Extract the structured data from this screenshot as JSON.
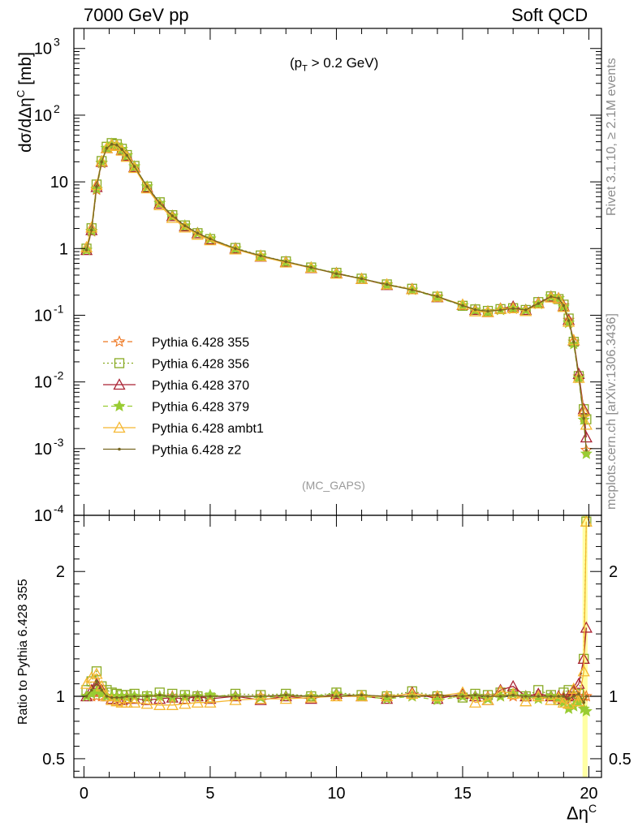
{
  "header": {
    "left": "7000 GeV pp",
    "right": "Soft QCD"
  },
  "annotation": {
    "cut_prefix": "(p",
    "cut_sub": "T",
    "cut_suffix": " > 0.2 GeV)",
    "tag": "(MC_GAPS)"
  },
  "side_labels": {
    "rivet": "Rivet 3.1.10, ≥ 2.1M events",
    "source": "mcplots.cern.ch [arXiv:1306.3436]"
  },
  "axis_text": {
    "y_top_main": "dσ/dΔη",
    "y_top_sup": "C",
    "y_top_unit": " [mb]",
    "y_bottom": "Ratio to Pythia 6.428 355",
    "x_main": "Δη",
    "x_sup": "C"
  },
  "colors": {
    "s355": "#ee7722",
    "s356": "#88aa22",
    "s370": "#aa2233",
    "s379": "#99cc33",
    "ambt1": "#f5b730",
    "z2": "#776622"
  },
  "chart_data": [
    {
      "type": "line",
      "panel": "main",
      "xlim": [
        -0.4,
        20.5
      ],
      "ylim": [
        0.0001,
        2000
      ],
      "y_scale": "log",
      "x_ticks": [
        0,
        5,
        10,
        15,
        20
      ],
      "y_tick_labels": [
        "10^3",
        "10^2",
        "10",
        "1",
        "10^-1",
        "10^-2",
        "10^-3",
        "10^-4"
      ],
      "legend_position": "left-middle",
      "x": [
        0.1,
        0.3,
        0.5,
        0.7,
        0.9,
        1.1,
        1.3,
        1.5,
        1.7,
        2.0,
        2.5,
        3.0,
        3.5,
        4.0,
        4.5,
        5.0,
        6.0,
        7.0,
        8.0,
        9.0,
        10.0,
        11.0,
        12.0,
        13.0,
        14.0,
        15.0,
        15.5,
        16.0,
        16.5,
        17.0,
        17.5,
        18.0,
        18.5,
        18.8,
        19.0,
        19.2,
        19.4,
        19.6,
        19.8,
        19.9
      ],
      "reference": [
        0.95,
        1.8,
        7.6,
        19,
        32,
        37,
        36,
        31,
        25,
        17,
        8.5,
        4.8,
        3.1,
        2.2,
        1.7,
        1.4,
        1.0,
        0.78,
        0.63,
        0.52,
        0.42,
        0.35,
        0.29,
        0.24,
        0.19,
        0.14,
        0.12,
        0.115,
        0.12,
        0.125,
        0.12,
        0.15,
        0.19,
        0.18,
        0.14,
        0.085,
        0.04,
        0.012,
        0.003,
        0.00095
      ],
      "series": [
        {
          "name": "Pythia 6.428 355",
          "color_key": "s355",
          "marker": "star-open",
          "dash": "6,4",
          "scale": [
            1,
            1,
            1,
            1,
            1,
            1,
            1,
            1,
            1,
            1,
            1,
            1,
            1,
            1,
            1,
            1,
            1,
            1,
            1,
            1,
            1,
            1,
            1,
            1,
            1,
            1,
            1,
            1,
            1,
            1,
            1,
            1,
            1,
            1,
            1,
            1,
            1,
            1,
            1,
            1
          ]
        },
        {
          "name": "Pythia 6.428 356",
          "color_key": "s356",
          "marker": "square-open",
          "dash": "2,3",
          "scale": [
            1.05,
            1.12,
            1.2,
            1.08,
            1.05,
            1.03,
            1.02,
            1.01,
            1.01,
            1.02,
            1.0,
            1.03,
            1.02,
            1.01,
            1.0,
            0.99,
            1.02,
            1.01,
            1.02,
            1.0,
            1.03,
            1.01,
            1.0,
            1.04,
            1.0,
            0.99,
            1.02,
            1.01,
            1.03,
            1.02,
            1.0,
            1.05,
            1.01,
            0.97,
            1.03,
            1.05,
            1.0,
            1.02,
            1.3,
            2.9
          ]
        },
        {
          "name": "Pythia 6.428 370",
          "color_key": "s370",
          "marker": "triangle-open",
          "dash": "",
          "scale": [
            1.0,
            1.05,
            1.1,
            1.05,
            1.0,
            0.98,
            0.97,
            0.97,
            0.98,
            0.98,
            0.97,
            0.98,
            0.99,
            0.98,
            1.0,
            0.98,
            1.0,
            0.97,
            1.0,
            0.98,
            1.02,
            1.0,
            0.98,
            1.03,
            0.98,
            1.02,
            1.0,
            0.97,
            1.05,
            1.08,
            1.0,
            1.02,
            1.0,
            1.0,
            0.98,
            1.0,
            1.05,
            1.1,
            1.3,
            1.55
          ]
        },
        {
          "name": "Pythia 6.428 379",
          "color_key": "s379",
          "marker": "star-filled",
          "dash": "6,4",
          "scale": [
            1.0,
            1.02,
            1.04,
            1.02,
            1.0,
            1.0,
            0.99,
            1.0,
            0.99,
            1.0,
            1.0,
            1.0,
            0.99,
            1.0,
            1.0,
            1.01,
            1.0,
            0.99,
            1.0,
            1.0,
            1.02,
            1.0,
            0.98,
            1.0,
            0.97,
            1.0,
            1.0,
            0.98,
            1.0,
            1.02,
            1.0,
            0.98,
            1.0,
            0.99,
            0.95,
            0.9,
            0.92,
            0.95,
            0.9,
            0.88
          ]
        },
        {
          "name": "Pythia 6.428 ambt1",
          "color_key": "ambt1",
          "marker": "triangle-open",
          "dash": "",
          "scale": [
            1.1,
            1.15,
            1.18,
            1.08,
            1.0,
            0.97,
            0.96,
            0.95,
            0.95,
            0.95,
            0.94,
            0.93,
            0.93,
            0.94,
            0.95,
            0.95,
            0.97,
            0.98,
            0.98,
            0.99,
            1.0,
            1.0,
            1.0,
            1.02,
            1.0,
            1.03,
            0.95,
            0.97,
            1.04,
            1.02,
            0.96,
            1.0,
            0.97,
            0.99,
            0.95,
            0.94,
            1.06,
            0.96,
            1.2,
            2.4
          ]
        },
        {
          "name": "Pythia 6.428 z2",
          "color_key": "z2",
          "marker": "dot",
          "dash": "",
          "scale": [
            1.0,
            1.05,
            1.12,
            1.05,
            1.0,
            0.99,
            0.99,
            0.99,
            1.0,
            1.0,
            1.0,
            1.01,
            1.0,
            1.0,
            1.0,
            1.0,
            1.0,
            1.0,
            1.01,
            1.0,
            1.0,
            1.01,
            1.0,
            1.0,
            1.01,
            1.0,
            1.01,
            1.0,
            1.0,
            1.01,
            1.0,
            1.0,
            1.0,
            1.0,
            1.0,
            0.98,
            1.0,
            1.02,
            0.95,
            1.0
          ]
        }
      ]
    },
    {
      "type": "line",
      "panel": "ratio",
      "ylabel": "Ratio to Pythia 6.428 355",
      "xlabel": "Δη^C",
      "xlim": [
        -0.4,
        20.5
      ],
      "ylim": [
        0.35,
        2.45
      ],
      "y_ticks": [
        0.5,
        1,
        2
      ],
      "y_tick_labels": [
        "0.5",
        "1",
        "2"
      ],
      "x_tick_labels": [
        "0",
        "5",
        "10",
        "15",
        "20"
      ],
      "uncertainty_band": {
        "center": 1.0,
        "color": "#ffff99"
      }
    }
  ]
}
